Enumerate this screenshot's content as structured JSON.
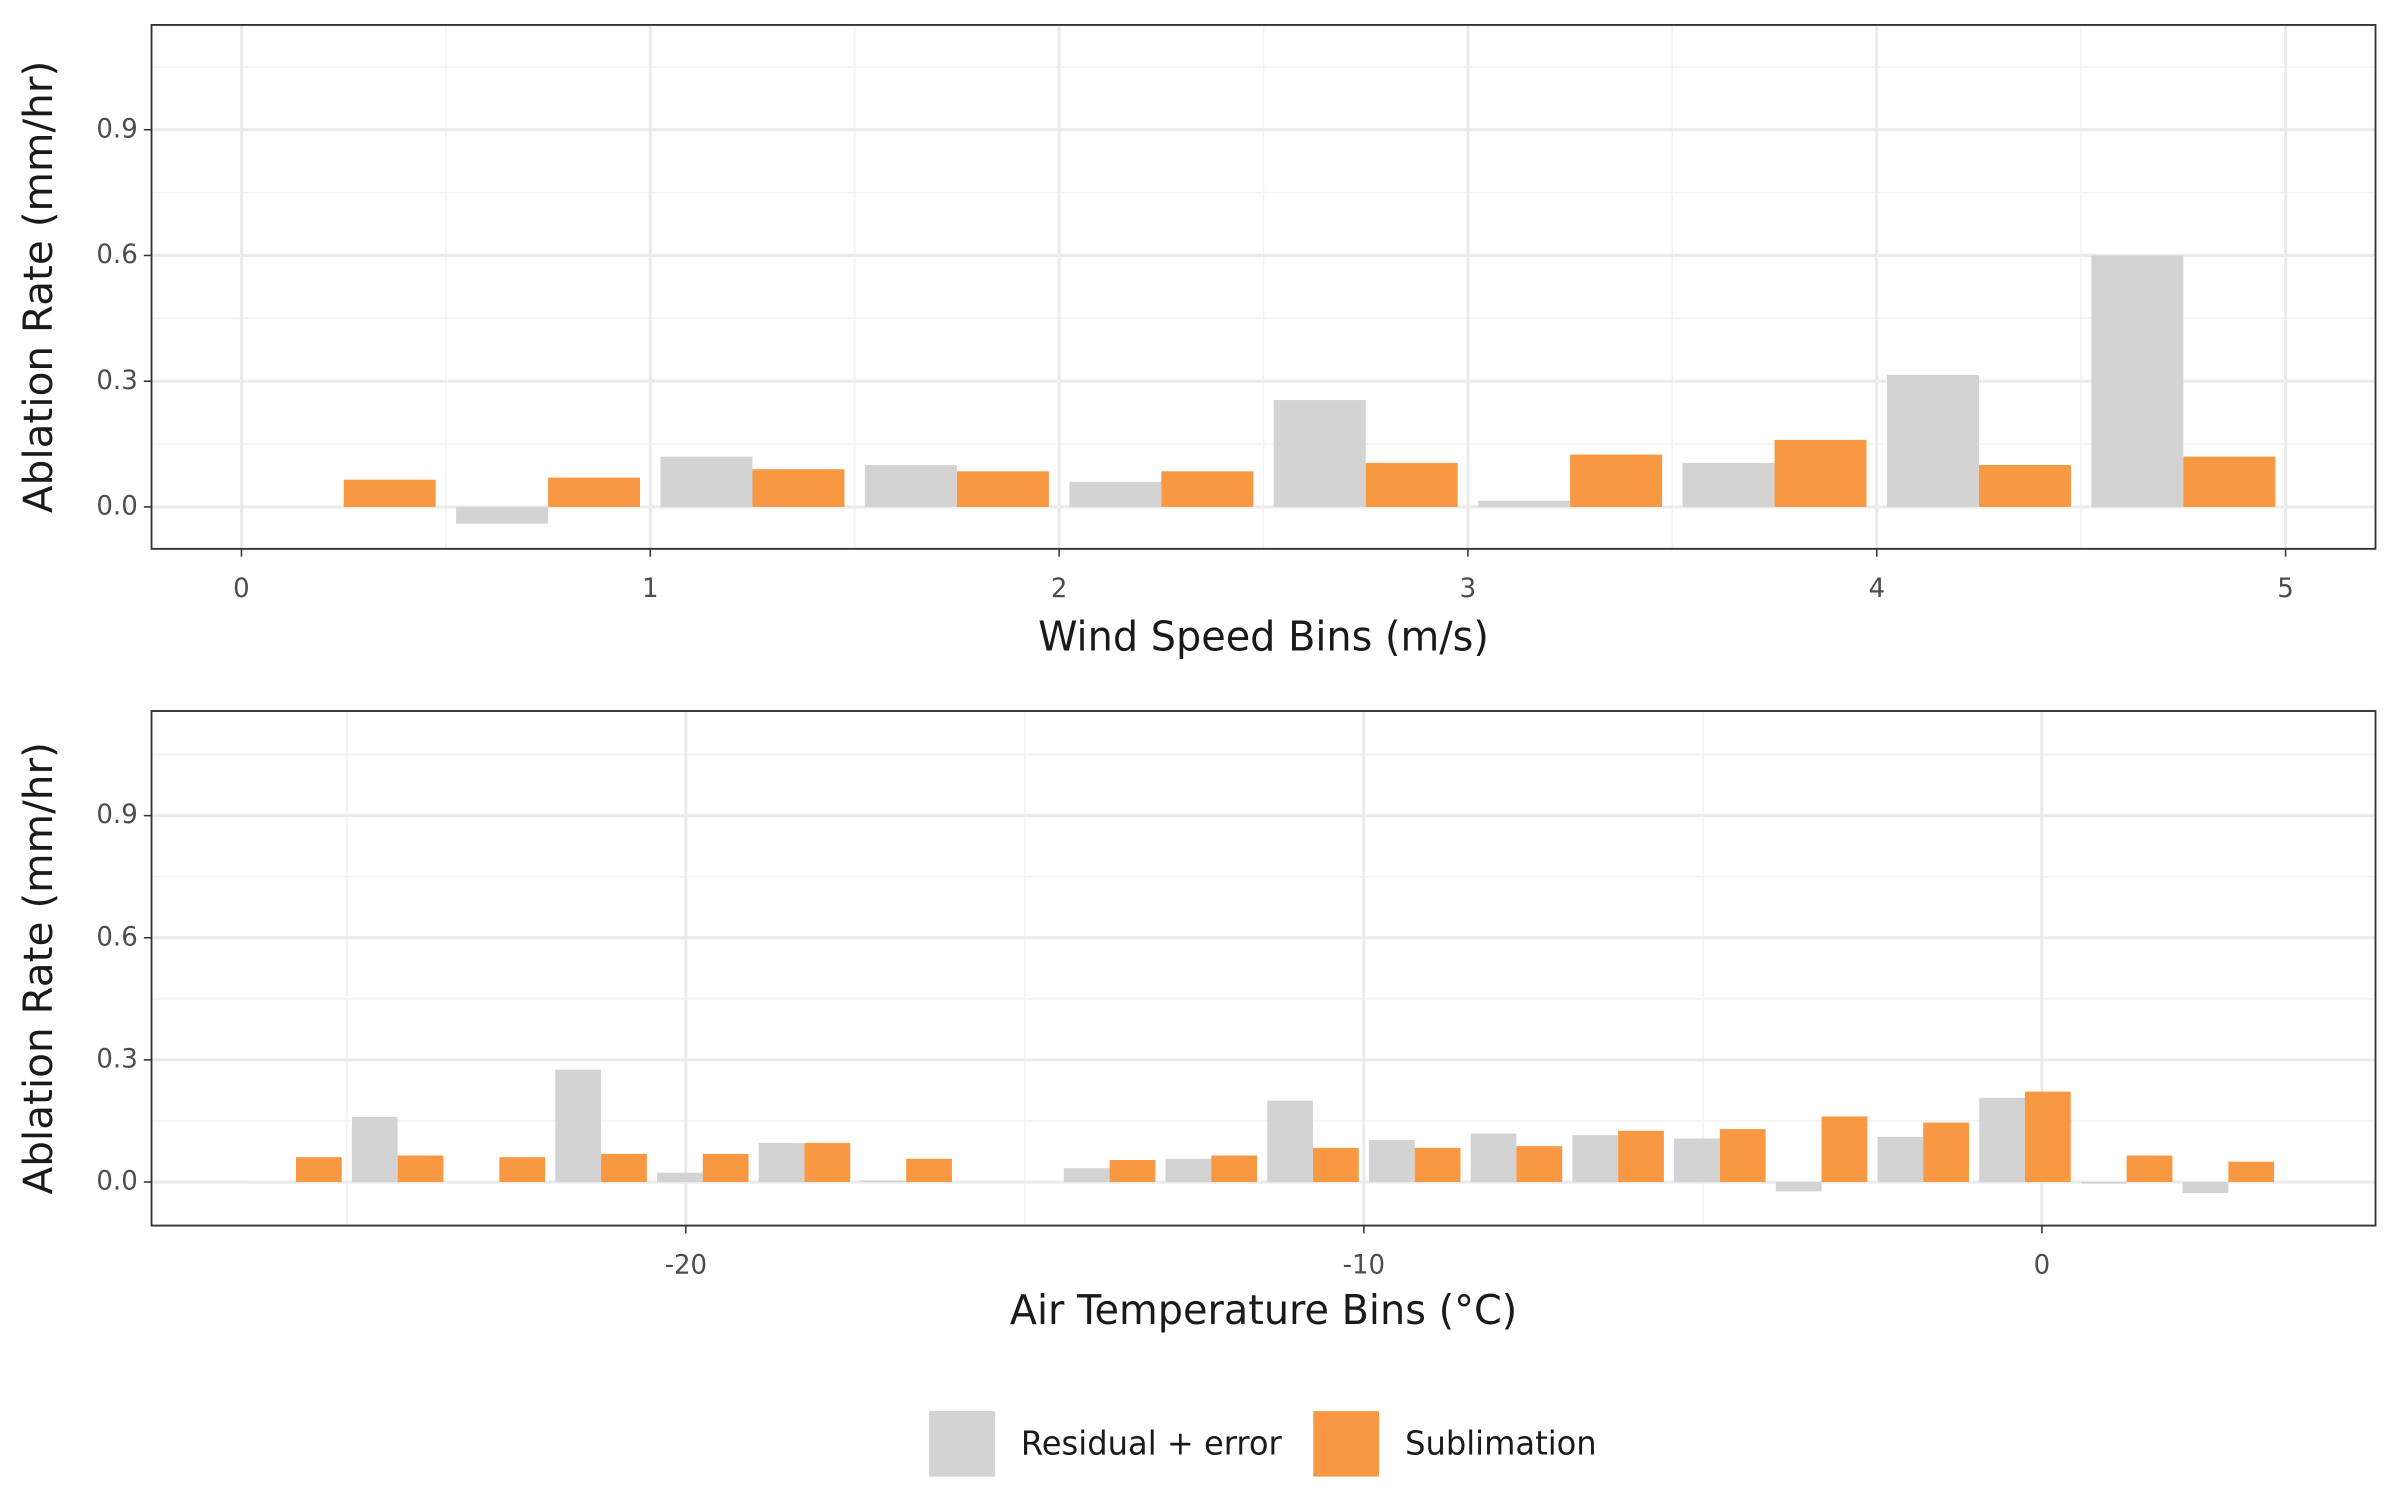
{
  "chart_data": [
    {
      "type": "bar",
      "x_label": "Wind Speed Bins (m/s)",
      "y_label": "Ablation Rate (mm/hr)",
      "x": [
        0.25,
        0.75,
        1.25,
        1.75,
        2.25,
        2.75,
        3.25,
        3.75,
        4.25,
        4.75
      ],
      "series": [
        {
          "name": "Residual + error",
          "color": "#d3d3d3",
          "values": [
            0.0,
            -0.04,
            0.12,
            0.1,
            0.06,
            0.255,
            0.015,
            0.105,
            0.315,
            0.6
          ]
        },
        {
          "name": "Sublimation",
          "color": "#f89843",
          "values": [
            0.065,
            0.07,
            0.09,
            0.085,
            0.085,
            0.105,
            0.125,
            0.16,
            0.1,
            0.12
          ]
        }
      ],
      "xlim": [
        -0.22,
        5.22
      ],
      "xticks": [
        0,
        1,
        2,
        3,
        4,
        5
      ],
      "ylim": [
        -0.1,
        1.15
      ],
      "yticks": [
        {
          "value": 0,
          "label": "0.0"
        },
        0.3,
        0.6,
        0.9
      ],
      "grid": true
    },
    {
      "type": "bar",
      "x_label": "Air Temperature Bins (°C)",
      "y_label": "Ablation Rate (mm/hr)",
      "x": [
        -25.75,
        -24.25,
        -22.75,
        -21.25,
        -19.75,
        -18.25,
        -16.75,
        -15.25,
        -13.75,
        -12.25,
        -10.75,
        -9.25,
        -7.75,
        -6.25,
        -4.75,
        -3.25,
        -1.75,
        -0.25,
        1.25,
        2.75
      ],
      "series": [
        {
          "color": "#d3d3d3",
          "values": [
            0.0,
            0.16,
            0.0,
            0.276,
            0.023,
            0.096,
            0.004,
            null,
            0.034,
            0.057,
            0.2,
            0.103,
            0.119,
            0.115,
            0.107,
            -0.023,
            0.111,
            0.207,
            -0.004,
            -0.027
          ]
        },
        {
          "color": "#f89843",
          "values": [
            0.061,
            0.065,
            0.061,
            0.069,
            0.069,
            0.096,
            0.057,
            null,
            0.054,
            0.065,
            0.084,
            0.084,
            0.088,
            0.126,
            0.13,
            0.161,
            0.146,
            0.222,
            0.065,
            0.05
          ]
        }
      ],
      "xlim": [
        -27.88,
        4.92
      ],
      "xticks": [
        -20,
        -10,
        0
      ],
      "ylim": [
        -0.107,
        1.157
      ],
      "yticks": [
        {
          "value": 0,
          "label": "0.0"
        },
        0.3,
        0.6,
        0.9
      ],
      "grid": true
    }
  ]
}
